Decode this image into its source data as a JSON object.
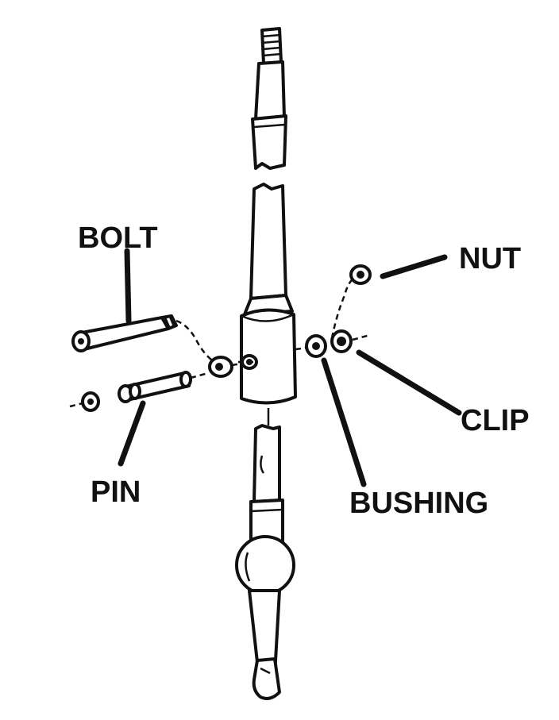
{
  "labels": {
    "bolt": "BOLT",
    "nut": "NUT",
    "clip": "CLIP",
    "pin": "PIN",
    "bushing": "BUSHING"
  },
  "colors": {
    "ink": "#111111",
    "paper": "#ffffff"
  }
}
